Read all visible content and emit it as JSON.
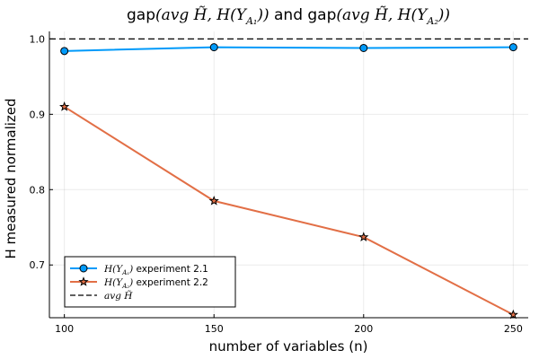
{
  "chart_data": {
    "type": "line",
    "title_parts": [
      {
        "text": "gap",
        "math": false
      },
      {
        "text": "(avg H̃, H(Y",
        "math": true
      },
      {
        "text": "A₁",
        "math": true,
        "sub": true
      },
      {
        "text": "))",
        "math": true
      },
      {
        "text": " and gap",
        "math": false
      },
      {
        "text": "(avg H̃, H(Y",
        "math": true
      },
      {
        "text": "A₂",
        "math": true,
        "sub": true
      },
      {
        "text": "))",
        "math": true
      }
    ],
    "xlabel": "number of variables (n)",
    "ylabel": "H measured normalized",
    "x": [
      100,
      150,
      200,
      250
    ],
    "xlim": [
      95,
      255
    ],
    "ylim": [
      0.63,
      1.01
    ],
    "xticks": [
      "100",
      "150",
      "200",
      "250"
    ],
    "yticks": [
      "0.7",
      "0.8",
      "0.9",
      "1.0"
    ],
    "grid": true,
    "legend_position": "bottom-left",
    "series": [
      {
        "name_math": "H(Y",
        "name_sub": "A₁",
        "name_close": ")",
        "name_text": " experiment 2.1",
        "values": [
          0.984,
          0.989,
          0.988,
          0.989
        ],
        "color": "#009AFA",
        "marker": "circle"
      },
      {
        "name_math": "H(Y",
        "name_sub": "A₂",
        "name_close": ")",
        "name_text": " experiment 2.2",
        "values": [
          0.91,
          0.785,
          0.737,
          0.634
        ],
        "color": "#E26F46",
        "marker": "star"
      }
    ],
    "reference_line": {
      "name_math": "avg H̃",
      "value": 1.0,
      "style": "dashed",
      "color": "#000000"
    }
  }
}
